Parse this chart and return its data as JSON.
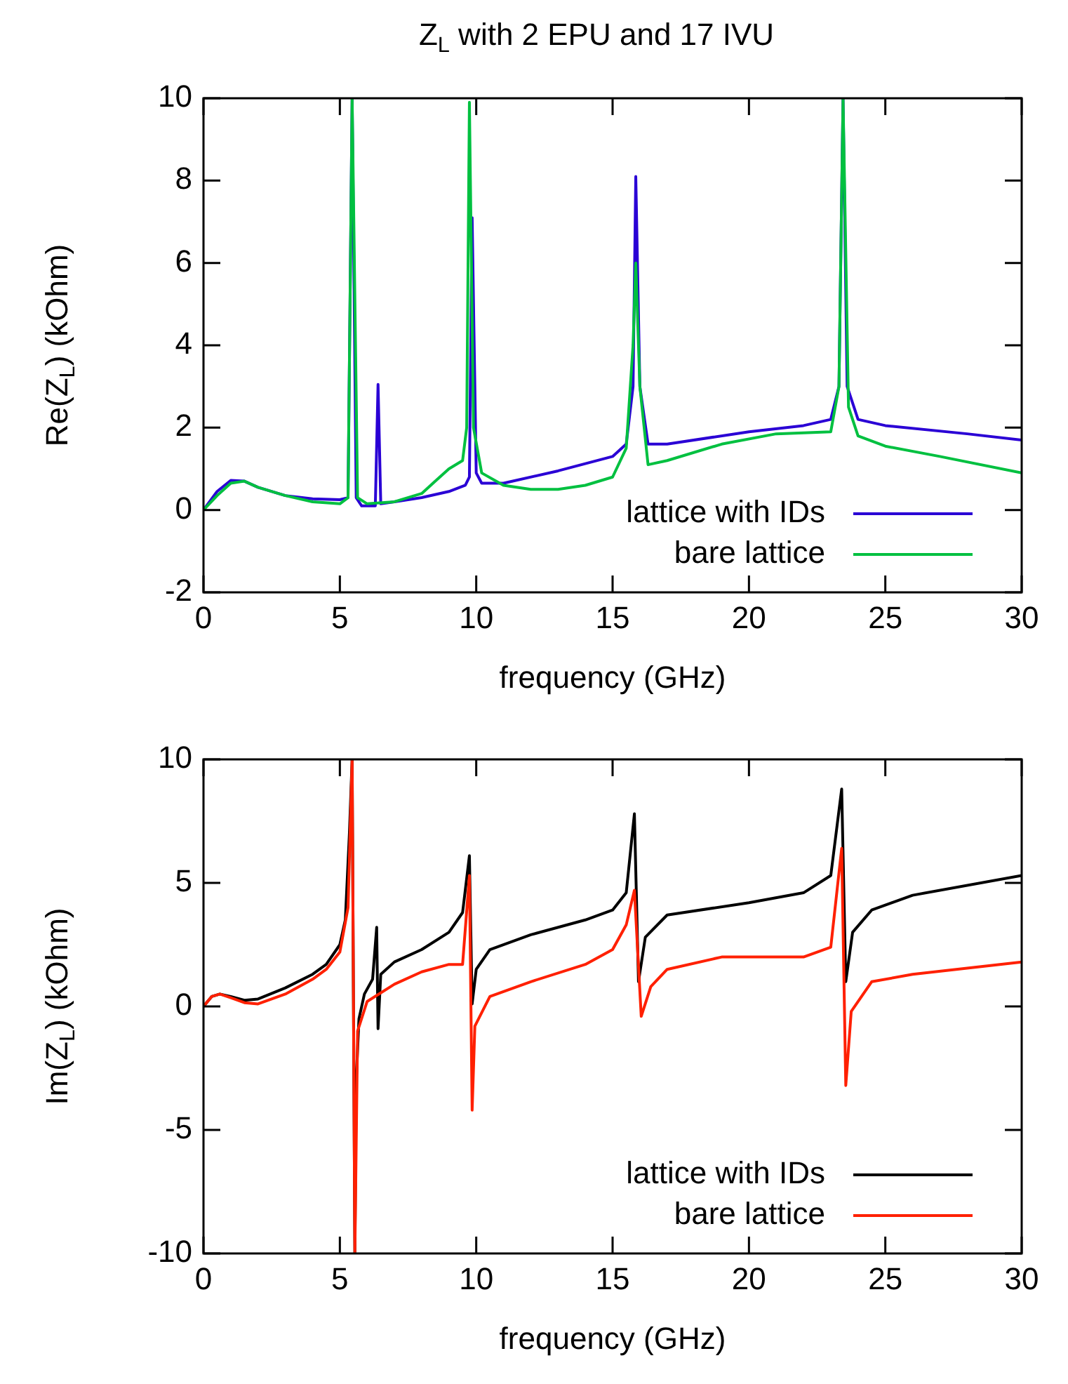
{
  "chart_data": [
    {
      "type": "line",
      "title": "Z$_{L}$ with 2 EPU and 17 IVU",
      "xlabel": "frequency (GHz)",
      "ylabel": "Re(Z$_{L}$) (kOhm)",
      "xlim": [
        0,
        30
      ],
      "xticks": [
        0,
        5,
        10,
        15,
        20,
        25,
        30
      ],
      "ylim": [
        -2,
        10
      ],
      "yticks": [
        -2,
        0,
        2,
        4,
        6,
        8,
        10
      ],
      "legend": "bottom right",
      "marker": "none",
      "line_style": "solid",
      "series": [
        {
          "name": "lattice with IDs",
          "color": "#2a00d5",
          "x": [
            0,
            0.5,
            1,
            1.5,
            2,
            3,
            4,
            5,
            5.3,
            5.45,
            5.6,
            5.8,
            6.3,
            6.4,
            6.5,
            7,
            8,
            9,
            9.6,
            9.75,
            9.85,
            10,
            10.2,
            11,
            13,
            15,
            15.5,
            15.75,
            15.85,
            16,
            16.3,
            17,
            20,
            22,
            23,
            23.3,
            23.45,
            23.6,
            24,
            25,
            28,
            30
          ],
          "values": [
            0,
            0.45,
            0.72,
            0.7,
            0.55,
            0.35,
            0.27,
            0.25,
            0.3,
            10,
            0.3,
            0.1,
            0.1,
            3.05,
            0.15,
            0.2,
            0.3,
            0.45,
            0.6,
            0.8,
            7.1,
            0.9,
            0.65,
            0.65,
            0.95,
            1.3,
            1.6,
            3,
            8.1,
            3,
            1.6,
            1.6,
            1.9,
            2.05,
            2.2,
            3,
            10,
            3,
            2.2,
            2.05,
            1.85,
            1.7
          ]
        },
        {
          "name": "bare lattice",
          "color": "#00c040",
          "x": [
            0,
            0.5,
            1,
            1.5,
            2,
            3,
            4,
            5,
            5.3,
            5.45,
            5.65,
            6,
            7,
            8,
            8.5,
            9,
            9.5,
            9.65,
            9.75,
            9.9,
            10.2,
            11,
            12,
            13,
            14,
            15,
            15.5,
            15.75,
            15.85,
            16,
            16.3,
            17,
            19,
            21,
            23,
            23.3,
            23.45,
            23.65,
            24,
            25,
            27,
            30
          ],
          "values": [
            0,
            0.35,
            0.65,
            0.7,
            0.55,
            0.35,
            0.2,
            0.15,
            0.3,
            10,
            0.3,
            0.15,
            0.2,
            0.4,
            0.7,
            1,
            1.2,
            2,
            9.9,
            2,
            0.9,
            0.6,
            0.5,
            0.5,
            0.6,
            0.8,
            1.5,
            4,
            6,
            3,
            1.1,
            1.2,
            1.6,
            1.85,
            1.9,
            3,
            10,
            2.5,
            1.8,
            1.55,
            1.3,
            0.9
          ]
        }
      ]
    },
    {
      "type": "line",
      "xlabel": "frequency (GHz)",
      "ylabel": "Im(Z$_{L}$) (kOhm)",
      "xlim": [
        0,
        30
      ],
      "xticks": [
        0,
        5,
        10,
        15,
        20,
        25,
        30
      ],
      "ylim": [
        -10,
        10
      ],
      "yticks": [
        -10,
        -5,
        0,
        5,
        10
      ],
      "legend": "bottom right",
      "marker": "none",
      "line_style": "solid",
      "series": [
        {
          "name": "lattice with IDs",
          "color": "#000000",
          "x": [
            0,
            0.3,
            0.6,
            1,
            1.5,
            2,
            3,
            4,
            4.5,
            5,
            5.2,
            5.35,
            5.45,
            5.55,
            5.6,
            5.7,
            5.9,
            6.2,
            6.35,
            6.4,
            6.5,
            7,
            8,
            9,
            9.5,
            9.75,
            9.85,
            10,
            10.5,
            12,
            14,
            15,
            15.5,
            15.8,
            15.95,
            16.2,
            17,
            20,
            22,
            23,
            23.4,
            23.55,
            23.8,
            24.5,
            26,
            30
          ],
          "values": [
            0,
            0.4,
            0.5,
            0.4,
            0.25,
            0.3,
            0.75,
            1.3,
            1.7,
            2.5,
            3.5,
            7,
            10,
            -10,
            -3,
            -0.5,
            0.5,
            1.1,
            3.2,
            -0.9,
            1.3,
            1.8,
            2.3,
            3,
            3.8,
            6.1,
            0.1,
            1.5,
            2.3,
            2.9,
            3.5,
            3.9,
            4.6,
            7.8,
            1,
            2.8,
            3.7,
            4.2,
            4.6,
            5.3,
            8.8,
            1,
            3,
            3.9,
            4.5,
            5.3
          ]
        },
        {
          "name": "bare lattice",
          "color": "#ff2000",
          "x": [
            0,
            0.3,
            0.6,
            1,
            1.5,
            2,
            3,
            4,
            4.5,
            5,
            5.3,
            5.45,
            5.55,
            5.65,
            6,
            7,
            8,
            9,
            9.5,
            9.75,
            9.85,
            9.95,
            10.5,
            12,
            14,
            15,
            15.5,
            15.8,
            16.05,
            16.4,
            17,
            19,
            22,
            23,
            23.4,
            23.55,
            23.75,
            24.5,
            26,
            30
          ],
          "values": [
            0,
            0.4,
            0.5,
            0.35,
            0.15,
            0.1,
            0.5,
            1.1,
            1.5,
            2.2,
            4,
            10,
            -10,
            -1,
            0.2,
            0.9,
            1.4,
            1.7,
            1.7,
            5.3,
            -4.2,
            -0.8,
            0.4,
            1,
            1.7,
            2.3,
            3.3,
            4.7,
            -0.4,
            0.8,
            1.5,
            2,
            2,
            2.4,
            6.4,
            -3.2,
            -0.2,
            1,
            1.3,
            1.8
          ]
        }
      ]
    }
  ]
}
